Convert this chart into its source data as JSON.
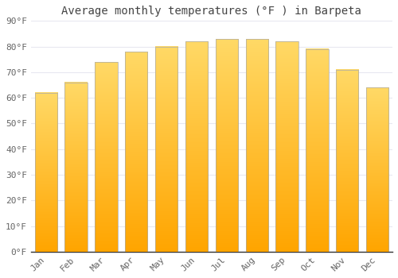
{
  "title": "Average monthly temperatures (°F ) in Barpeta",
  "months": [
    "Jan",
    "Feb",
    "Mar",
    "Apr",
    "May",
    "Jun",
    "Jul",
    "Aug",
    "Sep",
    "Oct",
    "Nov",
    "Dec"
  ],
  "values": [
    62,
    66,
    74,
    78,
    80,
    82,
    83,
    83,
    82,
    79,
    71,
    64
  ],
  "bar_color_bottom": "#FFA500",
  "bar_color_top": "#FFD966",
  "bar_edge_color": "#AAAAAA",
  "background_color": "#FFFFFF",
  "ylim": [
    0,
    90
  ],
  "yticks": [
    0,
    10,
    20,
    30,
    40,
    50,
    60,
    70,
    80,
    90
  ],
  "ytick_labels": [
    "0°F",
    "10°F",
    "20°F",
    "30°F",
    "40°F",
    "50°F",
    "60°F",
    "70°F",
    "80°F",
    "90°F"
  ],
  "title_fontsize": 10,
  "tick_fontsize": 8,
  "grid_color": "#E8E8F0",
  "bar_width": 0.75
}
